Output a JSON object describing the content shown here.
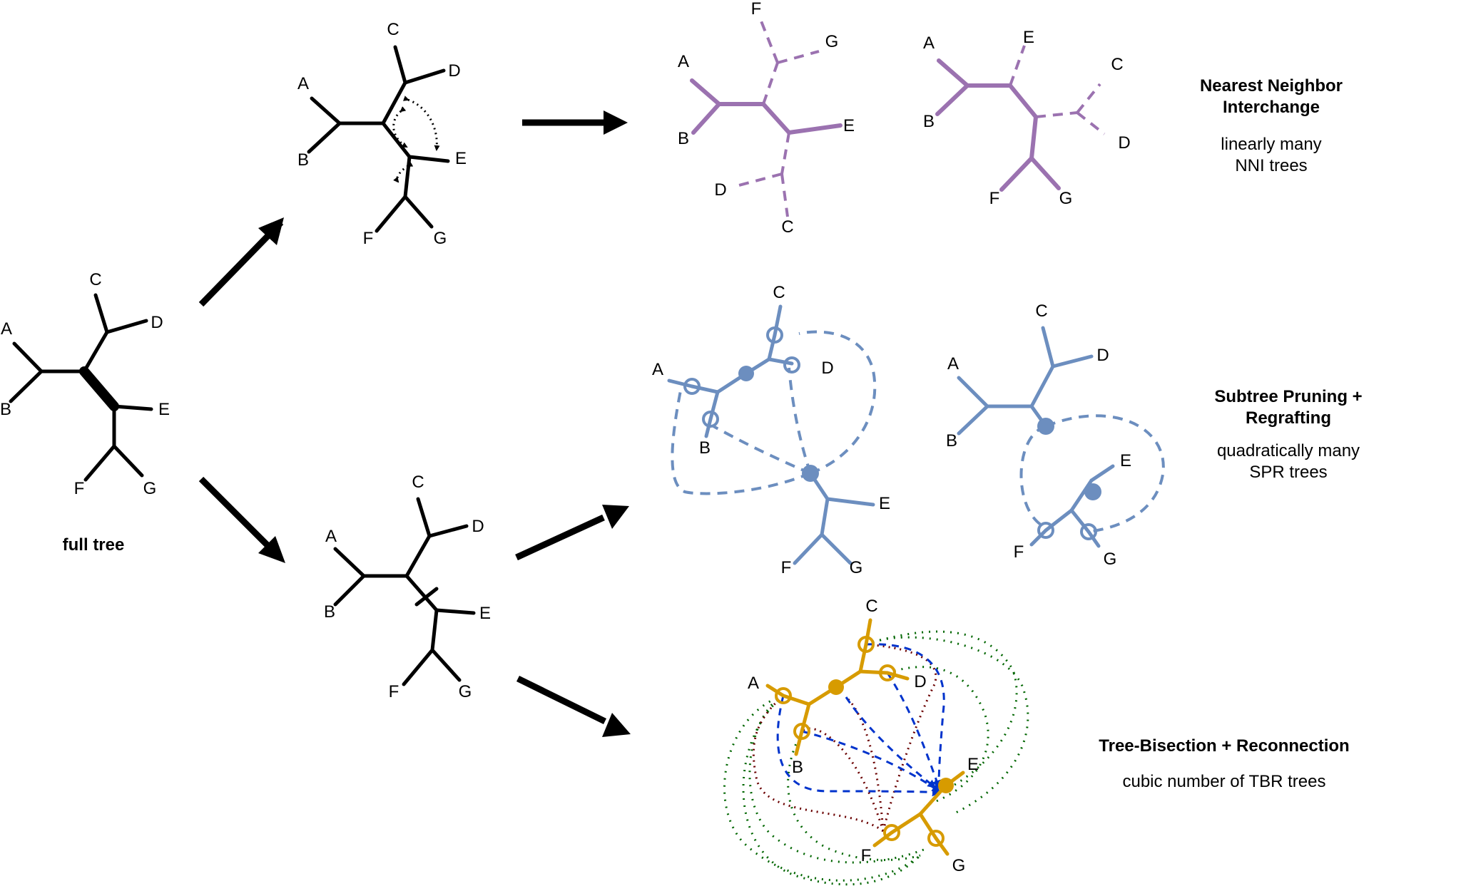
{
  "colors": {
    "black": "#000000",
    "nni": "#9b72b0",
    "spr": "#6c8ebf",
    "tbr": "#d79b00",
    "tbr_red": "#6b0000",
    "tbr_blue": "#0033cc",
    "tbr_green": "#006600"
  },
  "leaves": [
    "A",
    "B",
    "C",
    "D",
    "E",
    "F",
    "G"
  ],
  "full_tree": {
    "caption": "full tree"
  },
  "nni": {
    "title_line1": "Nearest Neighbor",
    "title_line2": "Interchange",
    "sub_line1": "linearly many",
    "sub_line2": "NNI trees"
  },
  "spr": {
    "title_line1": "Subtree Pruning +",
    "title_line2": "Regrafting",
    "sub_line1": "quadratically many",
    "sub_line2": "SPR trees"
  },
  "tbr": {
    "title_line1": "Tree-Bisection + Reconnection",
    "sub_line1": "cubic number of TBR trees"
  }
}
